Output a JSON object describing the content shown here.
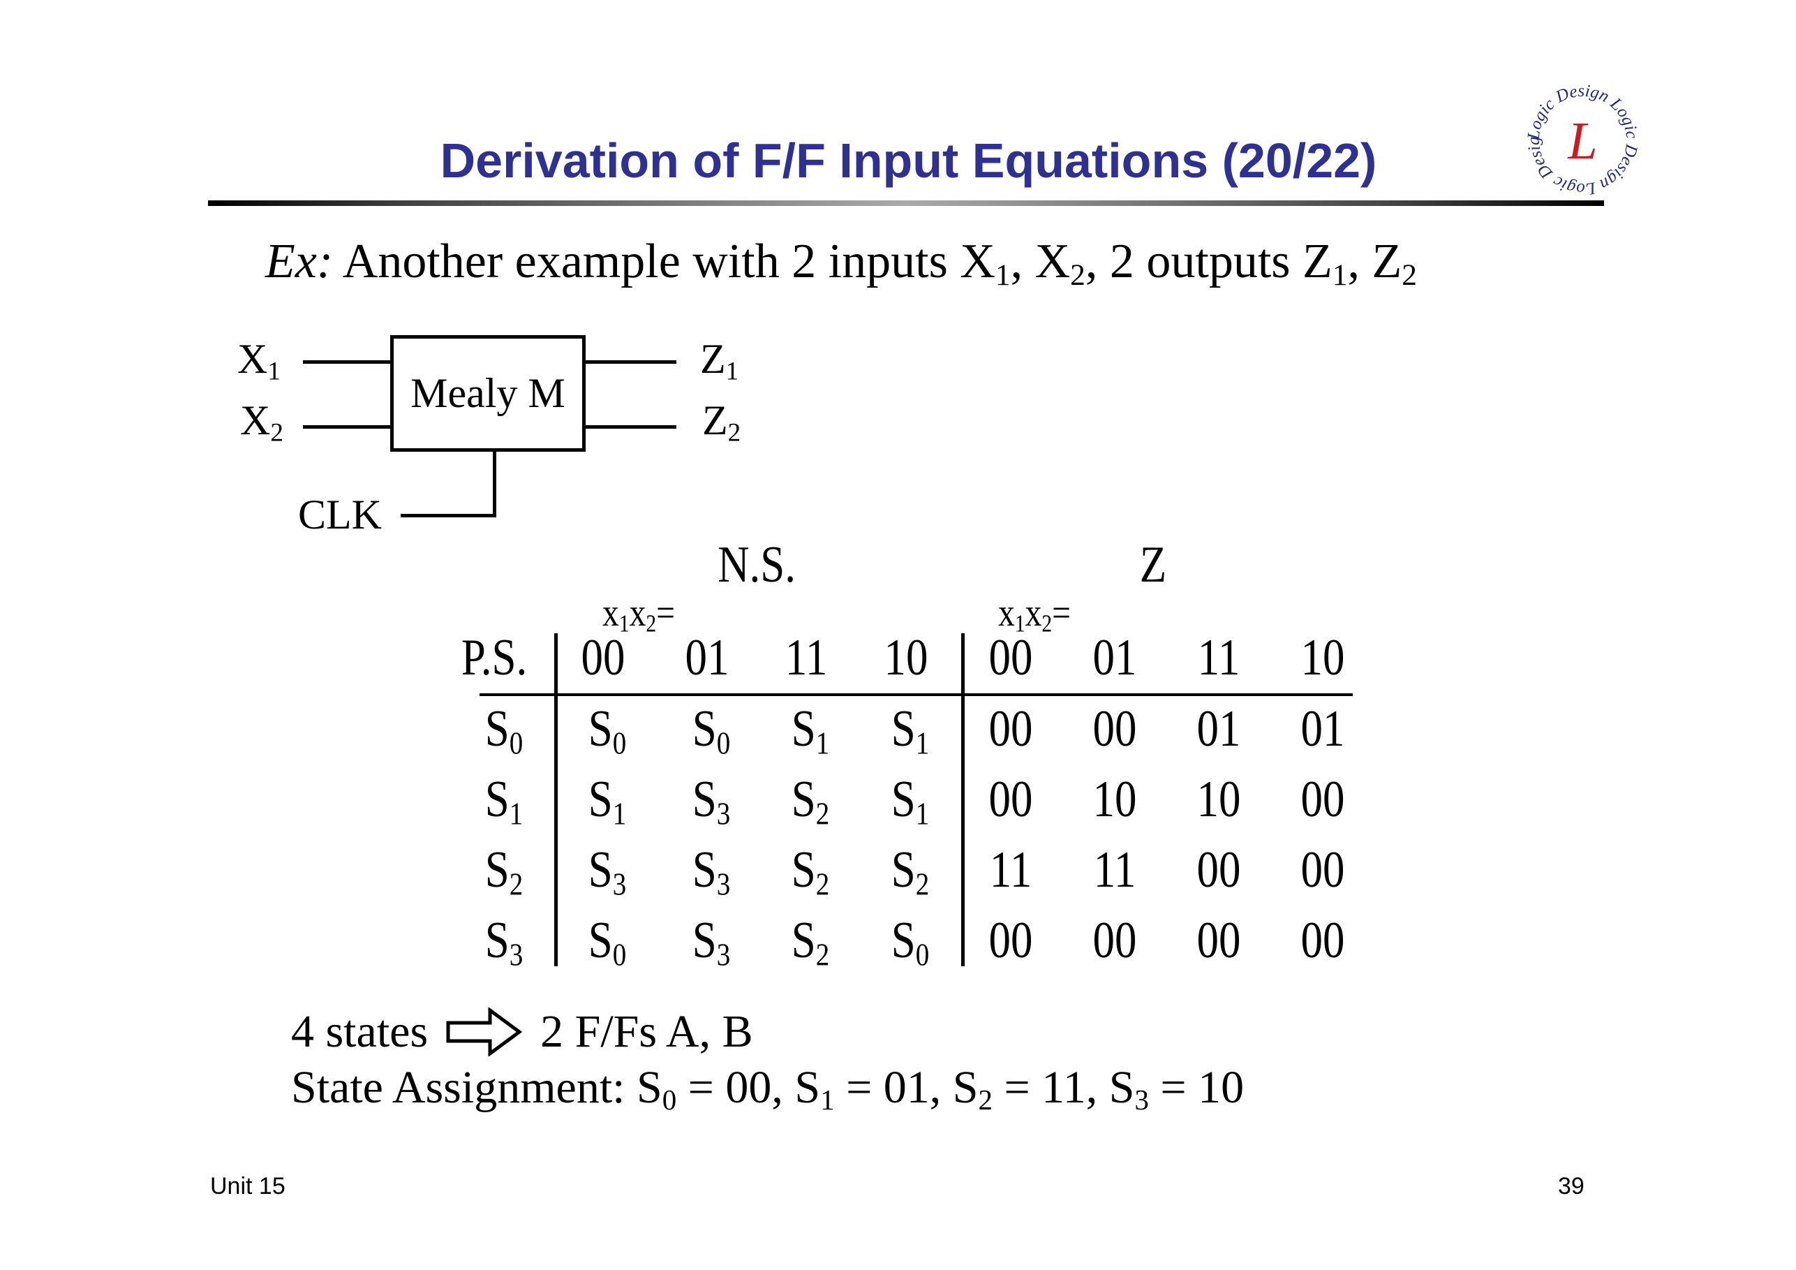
{
  "slide": {
    "title": "Derivation of F/F Input Equations (20/22)",
    "logo": {
      "text_outer": "Logic Design",
      "letter": "L",
      "colors": {
        "ring": "#1f2a7a",
        "letter": "#d0181f"
      }
    },
    "title_color": "#2e3192",
    "intro": [
      {
        "t": "Ex:",
        "italic": true
      },
      {
        "t": " Another example with 2 inputs X"
      },
      {
        "sub": "1"
      },
      {
        "t": ", X"
      },
      {
        "sub": "2"
      },
      {
        "t": ", 2 outputs Z"
      },
      {
        "sub": "1"
      },
      {
        "t": ", Z"
      },
      {
        "sub": "2"
      }
    ],
    "diagram": {
      "box_label": "Mealy M",
      "inputs": [
        {
          "name": "X",
          "sub": "1"
        },
        {
          "name": "X",
          "sub": "2"
        }
      ],
      "outputs": [
        {
          "name": "Z",
          "sub": "1"
        },
        {
          "name": "Z",
          "sub": "2"
        }
      ],
      "clock": "CLK"
    },
    "table": {
      "ns_header": "N.S.",
      "z_header": "Z",
      "input_label": {
        "a": "x",
        "a_sub": "1",
        "b": "x",
        "b_sub": "2",
        "eq": "="
      },
      "ps_header": "P.S.",
      "columns": [
        "00",
        "01",
        "11",
        "10"
      ],
      "rows": [
        {
          "ps": {
            "n": "S",
            "sub": "0"
          },
          "ns": [
            {
              "n": "S",
              "sub": "0"
            },
            {
              "n": "S",
              "sub": "0"
            },
            {
              "n": "S",
              "sub": "1"
            },
            {
              "n": "S",
              "sub": "1"
            }
          ],
          "z": [
            "00",
            "00",
            "01",
            "01"
          ]
        },
        {
          "ps": {
            "n": "S",
            "sub": "1"
          },
          "ns": [
            {
              "n": "S",
              "sub": "1"
            },
            {
              "n": "S",
              "sub": "3"
            },
            {
              "n": "S",
              "sub": "2"
            },
            {
              "n": "S",
              "sub": "1"
            }
          ],
          "z": [
            "00",
            "10",
            "10",
            "00"
          ]
        },
        {
          "ps": {
            "n": "S",
            "sub": "2"
          },
          "ns": [
            {
              "n": "S",
              "sub": "3"
            },
            {
              "n": "S",
              "sub": "3"
            },
            {
              "n": "S",
              "sub": "2"
            },
            {
              "n": "S",
              "sub": "2"
            }
          ],
          "z": [
            "11",
            "11",
            "00",
            "00"
          ]
        },
        {
          "ps": {
            "n": "S",
            "sub": "3"
          },
          "ns": [
            {
              "n": "S",
              "sub": "0"
            },
            {
              "n": "S",
              "sub": "3"
            },
            {
              "n": "S",
              "sub": "2"
            },
            {
              "n": "S",
              "sub": "0"
            }
          ],
          "z": [
            "00",
            "00",
            "00",
            "00"
          ]
        }
      ]
    },
    "states_line": {
      "left": "4 states",
      "arrow_icon": "hollow-right-arrow",
      "right": "2 F/Fs A, B"
    },
    "assignment": [
      {
        "t": "State Assignment: S"
      },
      {
        "sub": "0"
      },
      {
        "t": " = 00, S"
      },
      {
        "sub": "1"
      },
      {
        "t": " = 01, S"
      },
      {
        "sub": "2"
      },
      {
        "t": " = 11, S"
      },
      {
        "sub": "3"
      },
      {
        "t": " = 10"
      }
    ],
    "footer": {
      "unit": "Unit 15",
      "page": "39"
    }
  }
}
